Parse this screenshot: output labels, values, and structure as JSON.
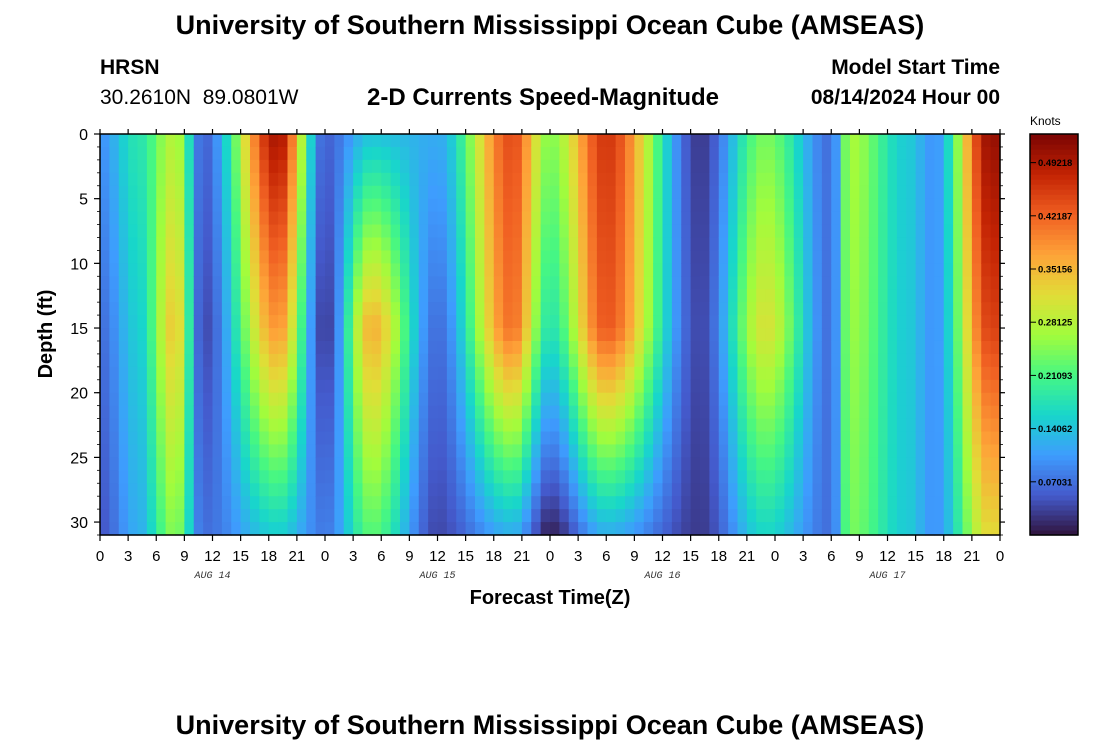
{
  "page": {
    "title": "University of Southern Mississippi Ocean Cube (AMSEAS)",
    "footer_title": "University of Southern Mississippi Ocean Cube (AMSEAS)"
  },
  "header": {
    "station_id": "HRSN",
    "station_coords": "30.2610N  89.0801W",
    "plot_title": "2-D Currents Speed-Magnitude",
    "model_start_label": "Model Start Time",
    "model_start_value": "08/14/2024 Hour 00"
  },
  "chart_data": {
    "type": "heatmap",
    "title": "2-D Currents Speed-Magnitude",
    "xlabel": "Forecast Time(Z)",
    "ylabel": "Depth (ft)",
    "x_range_hours": [
      0,
      96
    ],
    "y_range_ft": [
      0,
      31
    ],
    "y_ticks": [
      0,
      5,
      10,
      15,
      20,
      25,
      30
    ],
    "x_tick_labels": [
      "0",
      "3",
      "6",
      "9",
      "12",
      "15",
      "18",
      "21",
      "0",
      "3",
      "6",
      "9",
      "12",
      "15",
      "18",
      "21",
      "0",
      "3",
      "6",
      "9",
      "12",
      "15",
      "18",
      "21",
      "0",
      "3",
      "6",
      "9",
      "12",
      "15",
      "18",
      "21",
      "0"
    ],
    "day_labels": [
      {
        "label": "AUG 14",
        "hour": 12
      },
      {
        "label": "AUG 15",
        "hour": 36
      },
      {
        "label": "AUG 16",
        "hour": 60
      },
      {
        "label": "AUG 17",
        "hour": 84
      }
    ],
    "colorbar": {
      "label": "Knots",
      "min": 0.0,
      "max": 0.53,
      "ticks": [
        "0.49218",
        "0.42187",
        "0.35156",
        "0.28125",
        "0.21093",
        "0.14062",
        "0.07031"
      ],
      "tick_values": [
        0.49218,
        0.42187,
        0.35156,
        0.28125,
        0.21093,
        0.14062,
        0.07031
      ]
    },
    "speed_knots_approx": [
      {
        "hour": 0,
        "surface": 0.1,
        "mid": 0.07,
        "bottom": 0.05
      },
      {
        "hour": 4,
        "surface": 0.18,
        "mid": 0.15,
        "bottom": 0.12
      },
      {
        "hour": 8,
        "surface": 0.28,
        "mid": 0.34,
        "bottom": 0.25
      },
      {
        "hour": 11,
        "surface": 0.06,
        "mid": 0.04,
        "bottom": 0.07
      },
      {
        "hour": 19,
        "surface": 0.5,
        "mid": 0.38,
        "bottom": 0.15
      },
      {
        "hour": 24,
        "surface": 0.06,
        "mid": 0.03,
        "bottom": 0.08
      },
      {
        "hour": 29,
        "surface": 0.14,
        "mid": 0.36,
        "bottom": 0.22
      },
      {
        "hour": 36,
        "surface": 0.12,
        "mid": 0.07,
        "bottom": 0.04
      },
      {
        "hour": 44,
        "surface": 0.44,
        "mid": 0.41,
        "bottom": 0.12
      },
      {
        "hour": 48,
        "surface": 0.25,
        "mid": 0.18,
        "bottom": 0.01
      },
      {
        "hour": 54,
        "surface": 0.46,
        "mid": 0.43,
        "bottom": 0.12
      },
      {
        "hour": 64,
        "surface": 0.03,
        "mid": 0.04,
        "bottom": 0.03
      },
      {
        "hour": 71,
        "surface": 0.24,
        "mid": 0.31,
        "bottom": 0.16
      },
      {
        "hour": 78,
        "surface": 0.07,
        "mid": 0.07,
        "bottom": 0.07
      },
      {
        "hour": 80,
        "surface": 0.27,
        "mid": 0.26,
        "bottom": 0.24
      },
      {
        "hour": 86,
        "surface": 0.15,
        "mid": 0.15,
        "bottom": 0.15
      },
      {
        "hour": 89,
        "surface": 0.1,
        "mid": 0.1,
        "bottom": 0.1
      },
      {
        "hour": 95,
        "surface": 0.51,
        "mid": 0.45,
        "bottom": 0.32
      }
    ]
  }
}
